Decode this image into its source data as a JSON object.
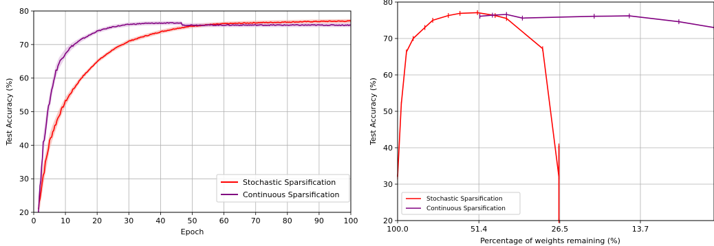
{
  "chart_data": [
    {
      "type": "line",
      "xlabel": "Epoch",
      "ylabel": "Test Accuracy (%)",
      "xlim": [
        0,
        100
      ],
      "ylim": [
        20,
        80
      ],
      "xticks": [
        0,
        10,
        20,
        30,
        40,
        50,
        60,
        70,
        80,
        90,
        100
      ],
      "yticks": [
        20,
        30,
        40,
        50,
        60,
        70,
        80
      ],
      "grid": true,
      "legend_position": "bottom-right",
      "series": [
        {
          "name": "Stochastic Sparsification",
          "color": "#ff0000",
          "band_color": "#f4a8a0",
          "x": [
            1.5,
            2,
            3,
            4,
            5,
            6,
            8,
            10,
            12,
            15,
            18,
            20,
            25,
            30,
            35,
            40,
            45,
            50,
            55,
            60,
            70,
            80,
            90,
            100
          ],
          "y": [
            21,
            25,
            31,
            36,
            41,
            44,
            49,
            53,
            56,
            60,
            63,
            65,
            68.5,
            71,
            72.5,
            73.8,
            74.8,
            75.5,
            75.9,
            76.2,
            76.5,
            76.7,
            76.9,
            77.0
          ]
        },
        {
          "name": "Continuous Sparsification",
          "color": "#800080",
          "band_color": "#dcb6dc",
          "x": [
            1.5,
            2,
            2.5,
            3,
            4,
            5,
            6,
            7,
            8,
            10,
            12,
            15,
            18,
            20,
            25,
            30,
            35,
            40,
            46.5,
            47,
            50,
            60,
            70,
            80,
            90,
            100
          ],
          "y": [
            21,
            28,
            33,
            40,
            47,
            53,
            58,
            62,
            64.5,
            67.5,
            69.5,
            71.5,
            73,
            74,
            75.3,
            76,
            76.3,
            76.4,
            76.4,
            75.8,
            75.8,
            75.8,
            75.8,
            75.8,
            75.8,
            75.8
          ]
        }
      ]
    },
    {
      "type": "line",
      "xlabel": "Percentage of weights remaining (%)",
      "ylabel": "Test Accuracy (%)",
      "x_scale": "log-reversed",
      "xlim": [
        100.0,
        7.5
      ],
      "ylim": [
        20,
        80
      ],
      "xticks": [
        100.0,
        51.4,
        26.5,
        13.7
      ],
      "xtick_labels": [
        "100.0",
        "51.4",
        "26.5",
        "13.7"
      ],
      "yticks": [
        20,
        30,
        40,
        50,
        60,
        70,
        80
      ],
      "grid": true,
      "legend_position": "bottom-left",
      "series": [
        {
          "name": "Stochastic Sparsification",
          "color": "#ff0000",
          "x": [
            100.0,
            97.0,
            93.0,
            88.0,
            80.0,
            75.0,
            66.0,
            60.0,
            52.0,
            45.0,
            41.0,
            30.5,
            26.7,
            26.7,
            26.7
          ],
          "y": [
            32,
            52,
            66.3,
            70,
            73,
            75,
            76.3,
            76.9,
            77.1,
            76.3,
            75.5,
            67.2,
            32,
            20,
            40.5
          ]
        },
        {
          "name": "Continuous Sparsification",
          "color": "#800080",
          "x": [
            51.0,
            46.0,
            41.0,
            36.0,
            20.0,
            15.0,
            10.0,
            7.5
          ],
          "y": [
            76.1,
            76.4,
            76.6,
            75.6,
            76.1,
            76.2,
            74.6,
            73.0
          ]
        }
      ]
    }
  ]
}
